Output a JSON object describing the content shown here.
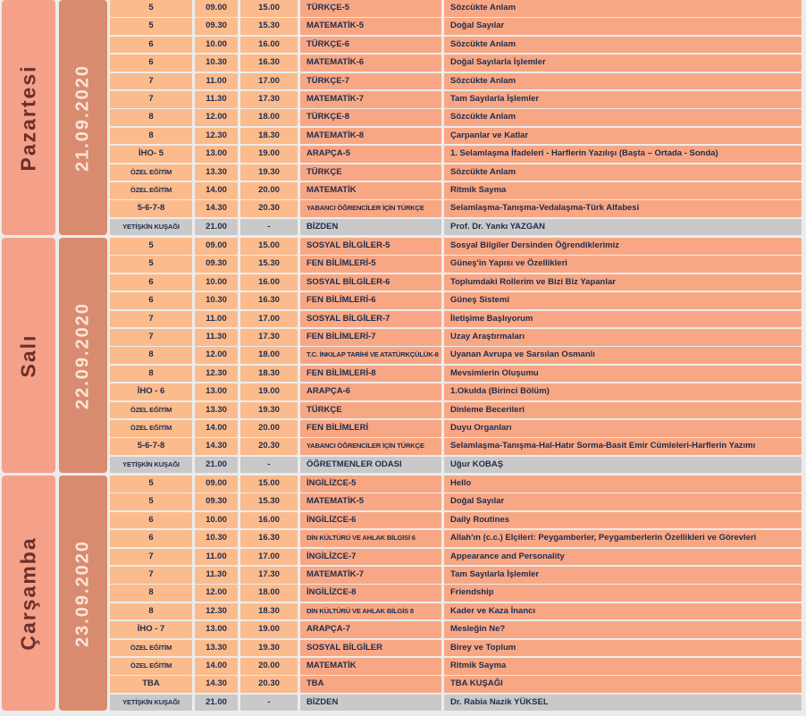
{
  "days": [
    {
      "day": "Pazartesi",
      "date": "21.09.2020",
      "rows": [
        [
          "5",
          "09.00",
          "15.00",
          "TÜRKÇE-5",
          "Sözcükte Anlam"
        ],
        [
          "5",
          "09.30",
          "15.30",
          "MATEMATİK-5",
          "Doğal Sayılar"
        ],
        [
          "6",
          "10.00",
          "16.00",
          "TÜRKÇE-6",
          "Sözcükte Anlam"
        ],
        [
          "6",
          "10.30",
          "16.30",
          "MATEMATİK-6",
          "Doğal Sayılarla İşlemler"
        ],
        [
          "7",
          "11.00",
          "17.00",
          "TÜRKÇE-7",
          "Sözcükte Anlam"
        ],
        [
          "7",
          "11.30",
          "17.30",
          "MATEMATİK-7",
          "Tam Sayılarla İşlemler"
        ],
        [
          "8",
          "12.00",
          "18.00",
          "TÜRKÇE-8",
          "Sözcükte Anlam"
        ],
        [
          "8",
          "12.30",
          "18.30",
          "MATEMATİK-8",
          "Çarpanlar ve Katlar"
        ],
        [
          "İHO- 5",
          "13.00",
          "19.00",
          "ARAPÇA-5",
          "1. Selamlaşma İfadeleri  -  Harflerin Yazılışı (Başta – Ortada - Sonda)"
        ],
        [
          "ÖZEL EĞİTİM",
          "13.30",
          "19.30",
          "TÜRKÇE",
          "Sözcükte Anlam"
        ],
        [
          "ÖZEL EĞİTİM",
          "14.00",
          "20.00",
          "MATEMATİK",
          "Ritmik Sayma"
        ],
        [
          "5-6-7-8",
          "14.30",
          "20.30",
          "YABANCI ÖĞRENCİLER İÇİN TÜRKÇE",
          "Selamlaşma-Tanışma-Vedalaşma-Türk Alfabesi"
        ],
        [
          "YETİŞKİN KUŞAĞI",
          "21.00",
          "-",
          "BİZDEN",
          "Prof. Dr. Yankı YAZGAN"
        ]
      ]
    },
    {
      "day": "Salı",
      "date": "22.09.2020",
      "rows": [
        [
          "5",
          "09.00",
          "15.00",
          "SOSYAL BİLGİLER-5",
          "Sosyal Bilgiler Dersinden Öğrendiklerimiz"
        ],
        [
          "5",
          "09.30",
          "15.30",
          "FEN BİLİMLERİ-5",
          "Güneş'in Yapısı ve Özellikleri"
        ],
        [
          "6",
          "10.00",
          "16.00",
          "SOSYAL BİLGİLER-6",
          "Toplumdaki Rollerim ve Bizi Biz Yapanlar"
        ],
        [
          "6",
          "10.30",
          "16.30",
          "FEN BİLİMLERİ-6",
          "Güneş Sistemi"
        ],
        [
          "7",
          "11.00",
          "17.00",
          "SOSYAL BİLGİLER-7",
          "İletişime Başlıyorum"
        ],
        [
          "7",
          "11.30",
          "17.30",
          "FEN BİLİMLERİ-7",
          "Uzay Araştırmaları"
        ],
        [
          "8",
          "12.00",
          "18.00",
          "T.C. İNKILAP TARİHİ VE ATATÜRKÇÜLÜK-8",
          "Uyanan Avrupa ve Sarsılan Osmanlı"
        ],
        [
          "8",
          "12.30",
          "18.30",
          "FEN BİLİMLERİ-8",
          "Mevsimlerin Oluşumu"
        ],
        [
          "İHO - 6",
          "13.00",
          "19.00",
          "ARAPÇA-6",
          "1.Okulda (Birinci Bölüm)"
        ],
        [
          "ÖZEL EĞİTİM",
          "13.30",
          "19.30",
          "TÜRKÇE",
          "Dinleme Becerileri"
        ],
        [
          "ÖZEL EĞİTİM",
          "14.00",
          "20.00",
          "FEN BİLİMLERİ",
          "Duyu Organları"
        ],
        [
          "5-6-7-8",
          "14.30",
          "20.30",
          "YABANCI ÖĞRENCİLER İÇİN TÜRKÇE",
          "Selamlaşma-Tanışma-Hal-Hatır Sorma-Basit Emir Cümleleri-Harflerin Yazımı"
        ],
        [
          "YETİŞKİN KUŞAĞI",
          "21.00",
          "-",
          "ÖĞRETMENLER ODASI",
          "Uğur KOBAŞ"
        ]
      ]
    },
    {
      "day": "Çarşamba",
      "date": "23.09.2020",
      "rows": [
        [
          "5",
          "09.00",
          "15.00",
          "İNGİLİZCE-5",
          "Hello"
        ],
        [
          "5",
          "09.30",
          "15.30",
          "MATEMATİK-5",
          "Doğal Sayılar"
        ],
        [
          "6",
          "10.00",
          "16.00",
          "İNGİLİZCE-6",
          "Daily Routines"
        ],
        [
          "6",
          "10.30",
          "16.30",
          "DİN KÜLTÜRÜ VE AHLAK BİLGİSİ 6",
          "Allah'ın (c.c.) Elçileri: Peygamberler, Peygamberlerin Özellikleri ve Görevleri"
        ],
        [
          "7",
          "11.00",
          "17.00",
          "İNGİLİZCE-7",
          "Appearance and Personality"
        ],
        [
          "7",
          "11.30",
          "17.30",
          "MATEMATİK-7",
          "Tam Sayılarla İşlemler"
        ],
        [
          "8",
          "12.00",
          "18.00",
          "İNGİLİZCE-8",
          "Friendship"
        ],
        [
          "8",
          "12.30",
          "18.30",
          "DİN KÜLTÜRÜ VE AHLAK BİLGİS 8",
          "Kader ve Kaza İnancı"
        ],
        [
          "İHO - 7",
          "13.00",
          "19.00",
          "ARAPÇA-7",
          "Mesleğin Ne?"
        ],
        [
          "ÖZEL EĞİTİM",
          "13.30",
          "19.30",
          "SOSYAL BİLGİLER",
          "Birey ve Toplum"
        ],
        [
          "ÖZEL EĞİTİM",
          "14.00",
          "20.00",
          "MATEMATİK",
          "Ritmik Sayma"
        ],
        [
          "TBA",
          "14.30",
          "20.30",
          "TBA",
          "TBA KUŞAĞI"
        ],
        [
          "YETİŞKİN KUŞAĞI",
          "21.00",
          "-",
          "BİZDEN",
          "Dr. Rabia Nazik YÜKSEL"
        ]
      ]
    }
  ]
}
